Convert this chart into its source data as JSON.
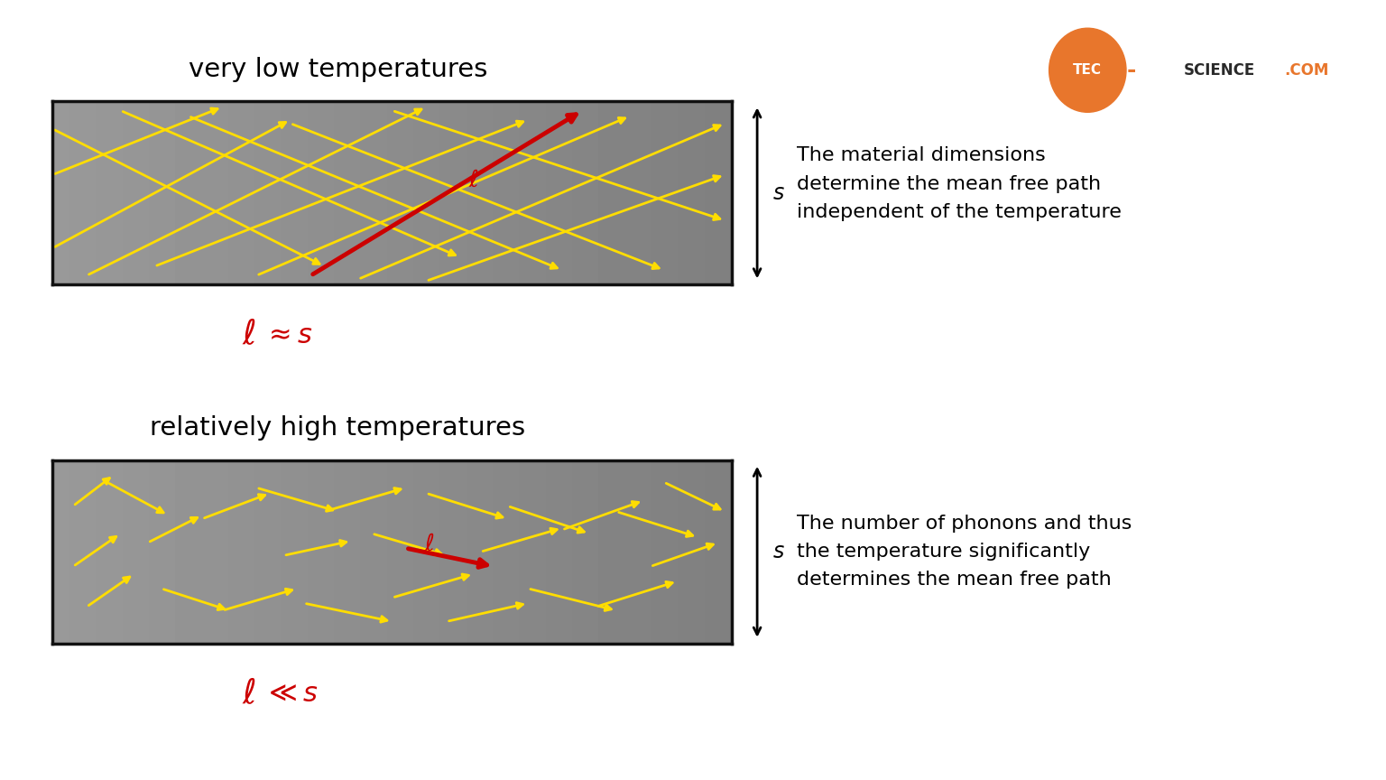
{
  "bg_color": "#ffffff",
  "box_bg": "#888888",
  "box_edge": "#111111",
  "yellow": "#ffdd00",
  "red": "#cc0000",
  "title1": "very low temperatures",
  "title2": "relatively high temperatures",
  "text1": "The material dimensions\ndetermine the mean free path\nindependent of the temperature",
  "text2": "The number of phonons and thus\nthe temperature significantly\ndetermines the mean free path",
  "logo_orange": "#e8762c",
  "logo_dark": "#2a2a2a",
  "low_temp_lines": [
    [
      [
        0.0,
        0.6
      ],
      [
        0.25,
        0.97
      ]
    ],
    [
      [
        0.0,
        0.2
      ],
      [
        0.35,
        0.9
      ]
    ],
    [
      [
        0.0,
        0.85
      ],
      [
        0.4,
        0.1
      ]
    ],
    [
      [
        0.05,
        0.05
      ],
      [
        0.55,
        0.97
      ]
    ],
    [
      [
        0.1,
        0.95
      ],
      [
        0.6,
        0.15
      ]
    ],
    [
      [
        0.15,
        0.1
      ],
      [
        0.7,
        0.9
      ]
    ],
    [
      [
        0.2,
        0.92
      ],
      [
        0.75,
        0.08
      ]
    ],
    [
      [
        0.3,
        0.05
      ],
      [
        0.85,
        0.92
      ]
    ],
    [
      [
        0.35,
        0.88
      ],
      [
        0.9,
        0.08
      ]
    ],
    [
      [
        0.45,
        0.03
      ],
      [
        0.99,
        0.88
      ]
    ],
    [
      [
        0.5,
        0.95
      ],
      [
        0.99,
        0.35
      ]
    ],
    [
      [
        0.55,
        0.02
      ],
      [
        0.99,
        0.6
      ]
    ]
  ],
  "high_temp_arrows": [
    [
      0.03,
      0.75,
      0.09,
      0.92
    ],
    [
      0.03,
      0.42,
      0.1,
      0.6
    ],
    [
      0.05,
      0.2,
      0.12,
      0.38
    ],
    [
      0.08,
      0.88,
      0.17,
      0.7
    ],
    [
      0.14,
      0.55,
      0.22,
      0.7
    ],
    [
      0.16,
      0.3,
      0.26,
      0.18
    ],
    [
      0.22,
      0.68,
      0.32,
      0.82
    ],
    [
      0.25,
      0.18,
      0.36,
      0.3
    ],
    [
      0.3,
      0.85,
      0.42,
      0.72
    ],
    [
      0.34,
      0.48,
      0.44,
      0.56
    ],
    [
      0.37,
      0.22,
      0.5,
      0.12
    ],
    [
      0.4,
      0.72,
      0.52,
      0.85
    ],
    [
      0.47,
      0.6,
      0.58,
      0.48
    ],
    [
      0.5,
      0.25,
      0.62,
      0.38
    ],
    [
      0.55,
      0.82,
      0.67,
      0.68
    ],
    [
      0.58,
      0.12,
      0.7,
      0.22
    ],
    [
      0.63,
      0.5,
      0.75,
      0.63
    ],
    [
      0.67,
      0.75,
      0.79,
      0.6
    ],
    [
      0.7,
      0.3,
      0.83,
      0.18
    ],
    [
      0.75,
      0.62,
      0.87,
      0.78
    ],
    [
      0.8,
      0.2,
      0.92,
      0.34
    ],
    [
      0.83,
      0.72,
      0.95,
      0.58
    ],
    [
      0.88,
      0.42,
      0.98,
      0.55
    ],
    [
      0.9,
      0.88,
      0.99,
      0.72
    ]
  ]
}
